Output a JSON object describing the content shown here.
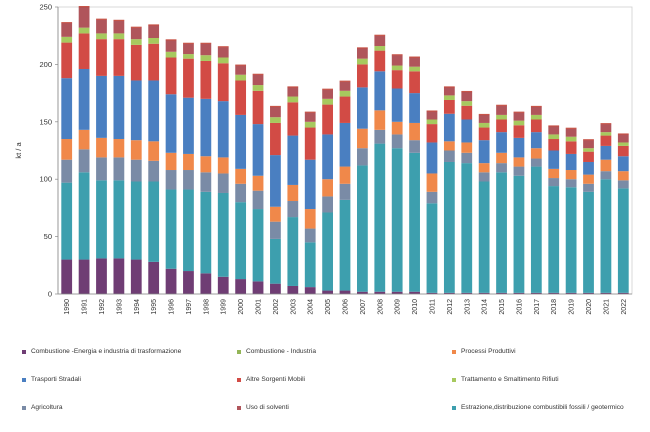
{
  "chart_data": {
    "type": "bar",
    "stacked": true,
    "ylabel": "kt / a",
    "ylim": [
      0,
      250
    ],
    "yticks": [
      0,
      50,
      100,
      150,
      200,
      250
    ],
    "grid": false,
    "legend_position": "bottom",
    "categories": [
      "1990",
      "1991",
      "1992",
      "1993",
      "1994",
      "1995",
      "1996",
      "1997",
      "1998",
      "1999",
      "2000",
      "2001",
      "2002",
      "2003",
      "2004",
      "2005",
      "2006",
      "2007",
      "2008",
      "2009",
      "2010",
      "2011",
      "2012",
      "2013",
      "2014",
      "2015",
      "2016",
      "2017",
      "2018",
      "2019",
      "2020",
      "2021",
      "2022"
    ],
    "series": [
      {
        "name": "Combustione -Energia e industria di trasformazione",
        "color": "#6f3d74",
        "values": [
          30,
          30,
          31,
          31,
          30,
          28,
          22,
          20,
          18,
          15,
          13,
          11,
          9,
          7,
          6,
          3,
          3,
          2,
          2,
          2,
          2,
          1,
          1,
          1,
          1,
          1,
          1,
          1,
          1,
          1,
          1,
          1,
          1
        ]
      },
      {
        "name": "Estrazione,distribuzione combustibili fossili / geotermico",
        "color": "#3d9fae",
        "values": [
          67,
          76,
          68,
          68,
          68,
          70,
          69,
          71,
          71,
          73,
          67,
          63,
          39,
          60,
          39,
          68,
          79,
          110,
          129,
          125,
          121,
          78,
          114,
          113,
          97,
          105,
          102,
          110,
          93,
          92,
          88,
          99,
          91
        ]
      },
      {
        "name": "Agricoltura",
        "color": "#7a8ba6",
        "values": [
          20,
          20,
          20,
          20,
          19,
          18,
          17,
          17,
          17,
          17,
          16,
          16,
          15,
          14,
          12,
          14,
          14,
          15,
          12,
          12,
          11,
          10,
          10,
          9,
          8,
          8,
          8,
          7,
          7,
          7,
          7,
          7,
          7
        ]
      },
      {
        "name": "Combustione - Industria",
        "color": "#93b557",
        "values": [
          0,
          0,
          0,
          0,
          0,
          0,
          0,
          0,
          0,
          0,
          0,
          0,
          0,
          0,
          0,
          0,
          0,
          0,
          0,
          0,
          0,
          0,
          0,
          0,
          0,
          0,
          0,
          0,
          0,
          0,
          0,
          0,
          0
        ]
      },
      {
        "name": "Processi Produttivi",
        "color": "#f0884a",
        "values": [
          18,
          17,
          17,
          16,
          17,
          17,
          15,
          14,
          14,
          14,
          13,
          13,
          13,
          14,
          17,
          15,
          15,
          17,
          17,
          11,
          15,
          16,
          8,
          9,
          8,
          9,
          8,
          9,
          8,
          8,
          8,
          10,
          8
        ]
      },
      {
        "name": "Trasporti Stradali",
        "color": "#4a7fc1",
        "values": [
          53,
          53,
          54,
          55,
          52,
          53,
          51,
          49,
          50,
          49,
          47,
          45,
          45,
          43,
          43,
          39,
          38,
          36,
          34,
          29,
          26,
          27,
          24,
          20,
          20,
          18,
          17,
          14,
          16,
          14,
          11,
          12,
          13
        ]
      },
      {
        "name": "Altre Sorgenti Mobili",
        "color": "#d24b45",
        "values": [
          31,
          31,
          32,
          32,
          31,
          32,
          32,
          34,
          33,
          33,
          30,
          29,
          28,
          29,
          28,
          26,
          23,
          20,
          18,
          16,
          19,
          16,
          12,
          12,
          11,
          11,
          11,
          11,
          10,
          11,
          9,
          9,
          9
        ]
      },
      {
        "name": "Trattamento e Smaltimento Rifiuti",
        "color": "#a7c95e",
        "values": [
          5,
          5,
          5,
          5,
          5,
          5,
          5,
          4,
          5,
          5,
          5,
          5,
          5,
          5,
          5,
          5,
          5,
          5,
          4,
          4,
          4,
          4,
          4,
          4,
          4,
          4,
          4,
          4,
          4,
          4,
          3,
          3,
          3
        ]
      },
      {
        "name": "Uso di solventi",
        "color": "#b0555b",
        "values": [
          12,
          18,
          12,
          11,
          10,
          11,
          10,
          9,
          10,
          9,
          8,
          9,
          9,
          8,
          8,
          8,
          8,
          9,
          9,
          9,
          8,
          7,
          7,
          8,
          7,
          8,
          7,
          7,
          7,
          7,
          7,
          7,
          7
        ]
      }
    ]
  },
  "legend_order": [
    "Combustione -Energia e industria di trasformazione",
    "Combustione - Industria",
    "Processi Produttivi",
    "Trasporti Stradali",
    "Altre Sorgenti Mobili",
    "Trattamento e Smaltimento Rifiuti",
    "Agricoltura",
    "Uso di solventi",
    "Estrazione,distribuzione combustibili fossili / geotermico"
  ]
}
